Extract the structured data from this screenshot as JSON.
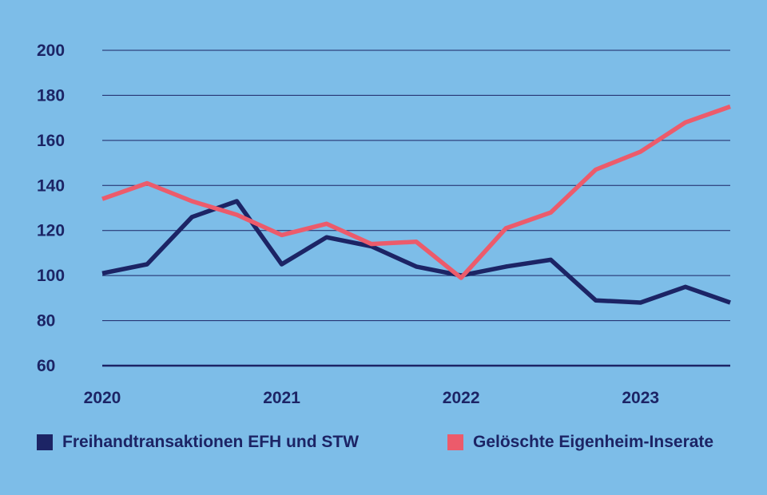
{
  "chart_data": {
    "type": "line",
    "title": "",
    "xlabel": "",
    "ylabel": "",
    "ylim": [
      60,
      200
    ],
    "yticks": [
      "200",
      "180",
      "160",
      "140",
      "120",
      "100",
      "80",
      "60"
    ],
    "ytick_values": [
      200,
      180,
      160,
      140,
      120,
      100,
      80,
      60
    ],
    "x_tick_labels": [
      "2020",
      "2021",
      "2022",
      "2023"
    ],
    "x_tick_values": [
      2020,
      2021,
      2022,
      2023
    ],
    "x": [
      2020.0,
      2020.25,
      2020.5,
      2020.75,
      2021.0,
      2021.25,
      2021.5,
      2021.75,
      2022.0,
      2022.25,
      2022.5,
      2022.75,
      2023.0,
      2023.25,
      2023.5
    ],
    "grid": true,
    "legend_placement": "bottom",
    "series": [
      {
        "name": "Freihandtransaktionen EFH und STW",
        "color": "#1c2465",
        "values": [
          101,
          105,
          126,
          133,
          105,
          117,
          113,
          104,
          100,
          104,
          107,
          89,
          88,
          95,
          88
        ]
      },
      {
        "name": "Gelöschte Eigenheim-Inserate",
        "color": "#ec5b6b",
        "values": [
          134,
          141,
          133,
          127,
          118,
          123,
          114,
          115,
          99,
          121,
          128,
          147,
          155,
          168,
          175
        ]
      }
    ]
  }
}
